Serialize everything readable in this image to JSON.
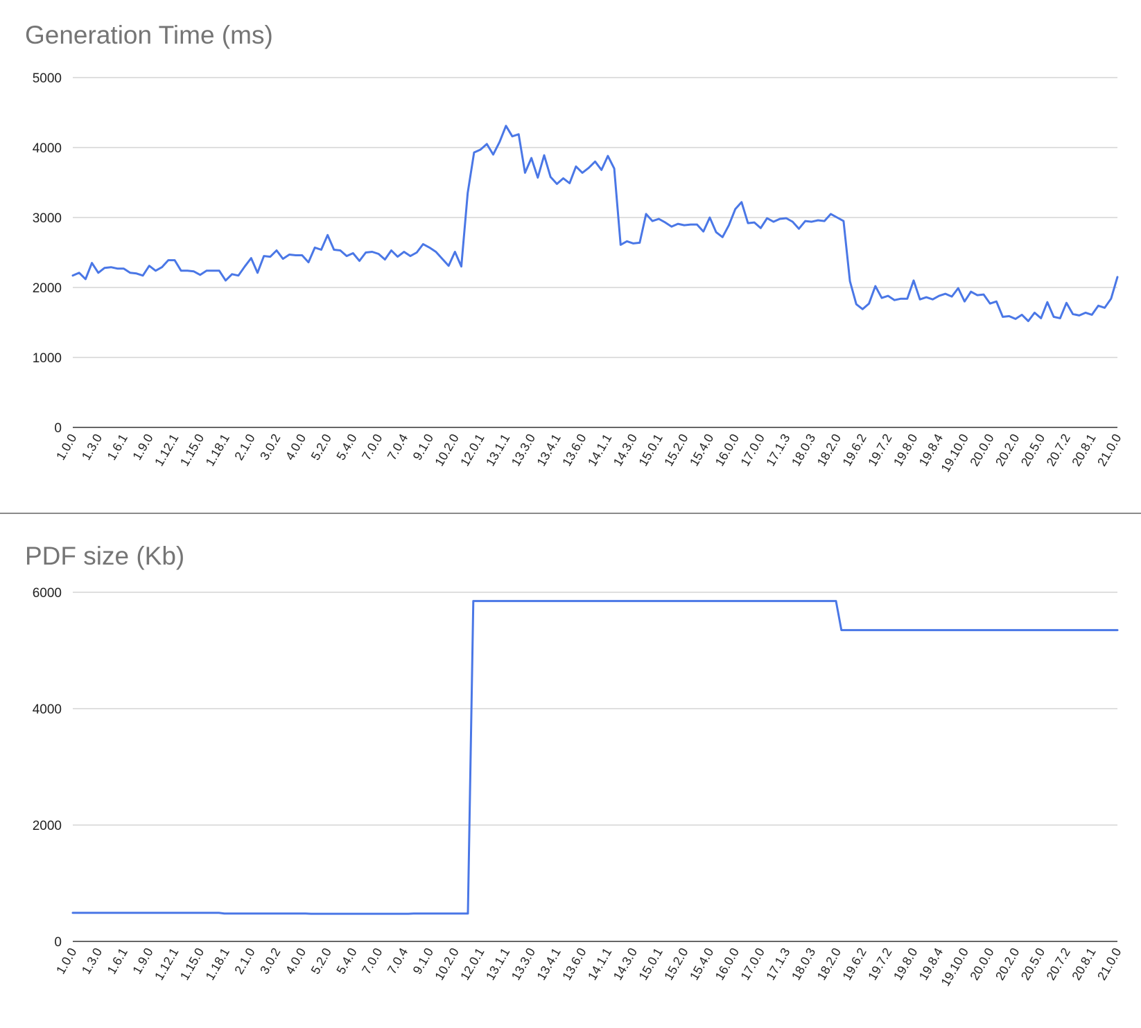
{
  "chart_data": [
    {
      "type": "line",
      "title": "Generation Time (ms)",
      "xlabel": "",
      "ylabel": "",
      "ylim": [
        0,
        5000
      ],
      "yticks": [
        0,
        1000,
        2000,
        3000,
        4000,
        5000
      ],
      "grid": true,
      "legend": "none",
      "color": "#4a77e6",
      "x_tick_labels": [
        "1.0.0",
        "1.3.0",
        "1.6.1",
        "1.9.0",
        "1.12.1",
        "1.15.0",
        "1.18.1",
        "2.1.0",
        "3.0.2",
        "4.0.0",
        "5.2.0",
        "5.4.0",
        "7.0.0",
        "7.0.4",
        "9.1.0",
        "10.2.0",
        "12.0.1",
        "13.1.1",
        "13.3.0",
        "13.4.1",
        "13.6.0",
        "14.1.1",
        "14.3.0",
        "15.0.1",
        "15.2.0",
        "15.4.0",
        "16.0.0",
        "17.0.0",
        "17.1.3",
        "18.0.3",
        "18.2.0",
        "19.6.2",
        "19.7.2",
        "19.8.0",
        "19.8.4",
        "19.10.0",
        "20.0.0",
        "20.2.0",
        "20.5.0",
        "20.7.2",
        "20.8.1",
        "21.0.0"
      ],
      "values": [
        2170,
        2210,
        2120,
        2350,
        2210,
        2280,
        2290,
        2270,
        2270,
        2210,
        2200,
        2170,
        2310,
        2240,
        2290,
        2390,
        2390,
        2240,
        2240,
        2230,
        2180,
        2240,
        2240,
        2240,
        2100,
        2190,
        2170,
        2300,
        2420,
        2210,
        2450,
        2440,
        2530,
        2410,
        2470,
        2460,
        2460,
        2360,
        2570,
        2540,
        2750,
        2540,
        2530,
        2450,
        2490,
        2380,
        2500,
        2510,
        2480,
        2400,
        2530,
        2440,
        2510,
        2450,
        2500,
        2620,
        2570,
        2510,
        2410,
        2310,
        2510,
        2300,
        3350,
        3930,
        3970,
        4050,
        3900,
        4080,
        4310,
        4160,
        4190,
        3640,
        3850,
        3570,
        3890,
        3580,
        3480,
        3560,
        3490,
        3730,
        3640,
        3710,
        3800,
        3680,
        3880,
        3700,
        2610,
        2660,
        2630,
        2640,
        3050,
        2950,
        2980,
        2930,
        2870,
        2910,
        2890,
        2900,
        2900,
        2800,
        3000,
        2790,
        2720,
        2890,
        3120,
        3220,
        2920,
        2930,
        2850,
        2990,
        2940,
        2980,
        2990,
        2940,
        2840,
        2950,
        2940,
        2960,
        2950,
        3050,
        3000,
        2950,
        2090,
        1760,
        1690,
        1770,
        2020,
        1850,
        1880,
        1820,
        1840,
        1840,
        2100,
        1830,
        1860,
        1830,
        1880,
        1910,
        1870,
        1990,
        1800,
        1940,
        1890,
        1900,
        1770,
        1800,
        1580,
        1590,
        1550,
        1610,
        1520,
        1640,
        1560,
        1790,
        1580,
        1560,
        1780,
        1620,
        1600,
        1640,
        1610,
        1740,
        1710,
        1840,
        2150
      ]
    },
    {
      "type": "line",
      "title": "PDF size (Kb)",
      "xlabel": "",
      "ylabel": "",
      "ylim": [
        0,
        6000
      ],
      "yticks": [
        0,
        2000,
        4000,
        6000
      ],
      "grid": true,
      "legend": "none",
      "color": "#4a77e6",
      "x_tick_labels": [
        "1.0.0",
        "1.3.0",
        "1.6.1",
        "1.9.0",
        "1.12.1",
        "1.15.0",
        "1.18.1",
        "2.1.0",
        "3.0.2",
        "4.0.0",
        "5.2.0",
        "5.4.0",
        "7.0.0",
        "7.0.4",
        "9.1.0",
        "10.2.0",
        "12.0.1",
        "13.1.1",
        "13.3.0",
        "13.4.1",
        "13.6.0",
        "14.1.1",
        "14.3.0",
        "15.0.1",
        "15.2.0",
        "15.4.0",
        "16.0.0",
        "17.0.0",
        "17.1.3",
        "18.0.3",
        "18.2.0",
        "19.6.2",
        "19.7.2",
        "19.8.0",
        "19.8.4",
        "19.10.0",
        "20.0.0",
        "20.2.0",
        "20.5.0",
        "20.7.2",
        "20.8.1",
        "21.0.0"
      ],
      "values": [
        490,
        490,
        490,
        490,
        490,
        490,
        490,
        490,
        490,
        490,
        490,
        490,
        490,
        490,
        490,
        490,
        490,
        490,
        490,
        490,
        490,
        490,
        490,
        490,
        490,
        490,
        490,
        490,
        480,
        480,
        480,
        480,
        480,
        480,
        480,
        480,
        480,
        480,
        480,
        480,
        480,
        480,
        480,
        480,
        475,
        475,
        475,
        475,
        475,
        475,
        475,
        475,
        475,
        475,
        475,
        475,
        475,
        475,
        475,
        475,
        475,
        475,
        475,
        480,
        480,
        480,
        480,
        480,
        480,
        480,
        480,
        480,
        480,
        480,
        5850,
        5850,
        5850,
        5850,
        5850,
        5850,
        5850,
        5850,
        5850,
        5850,
        5850,
        5850,
        5850,
        5850,
        5850,
        5850,
        5850,
        5850,
        5850,
        5850,
        5850,
        5850,
        5850,
        5850,
        5850,
        5850,
        5850,
        5850,
        5850,
        5850,
        5850,
        5850,
        5850,
        5850,
        5850,
        5850,
        5850,
        5850,
        5850,
        5850,
        5850,
        5850,
        5850,
        5850,
        5850,
        5850,
        5850,
        5850,
        5850,
        5850,
        5850,
        5850,
        5850,
        5850,
        5850,
        5850,
        5850,
        5850,
        5850,
        5850,
        5850,
        5850,
        5850,
        5850,
        5850,
        5850,
        5850,
        5850,
        5350,
        5350,
        5350,
        5350,
        5350,
        5350,
        5350,
        5350,
        5350,
        5350,
        5350,
        5350,
        5350,
        5350,
        5350,
        5350,
        5350,
        5350,
        5350,
        5350,
        5350,
        5350,
        5350,
        5350,
        5350,
        5350,
        5350,
        5350,
        5350,
        5350,
        5350,
        5350,
        5350,
        5350,
        5350,
        5350,
        5350,
        5350,
        5350,
        5350,
        5350,
        5350,
        5350,
        5350,
        5350,
        5350,
        5350,
        5350,
        5350,
        5350,
        5350,
        5350
      ]
    }
  ]
}
